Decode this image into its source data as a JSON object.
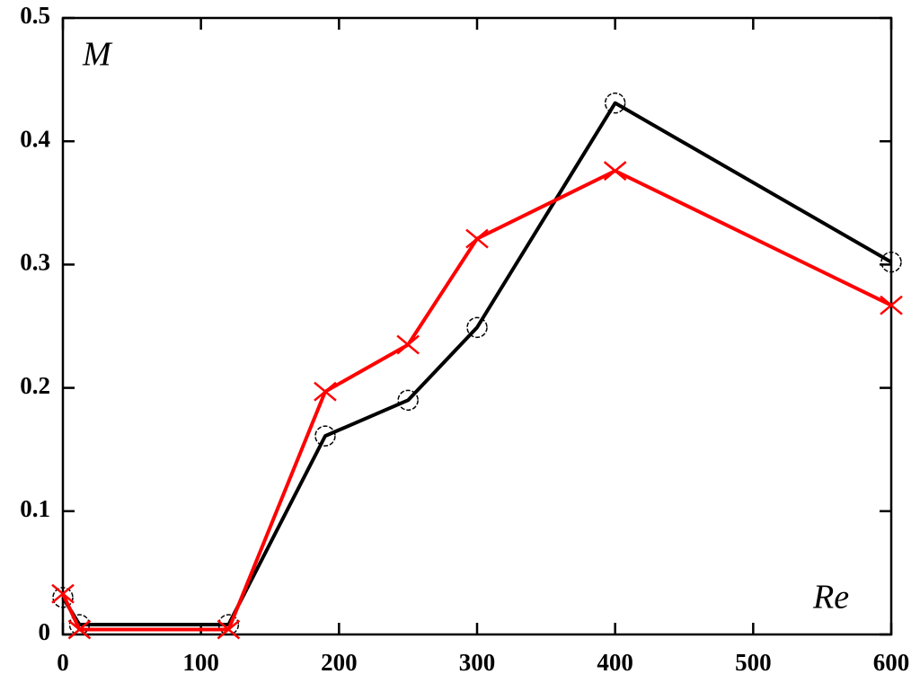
{
  "chart_data": {
    "type": "line",
    "xlabel": "Re",
    "ylabel": "M",
    "x": [
      0,
      12,
      120,
      190,
      250,
      300,
      400,
      600
    ],
    "series": [
      {
        "color": "#000000",
        "marker": "circle",
        "values": [
          0.03,
          0.008,
          0.008,
          0.161,
          0.19,
          0.249,
          0.431,
          0.302
        ]
      },
      {
        "color": "#ff0000",
        "marker": "cross",
        "values": [
          0.033,
          0.004,
          0.004,
          0.197,
          0.235,
          0.321,
          0.376,
          0.267
        ]
      }
    ],
    "xlim": [
      0,
      600
    ],
    "xticks": [
      0,
      100,
      200,
      300,
      400,
      500,
      600
    ],
    "ylim": [
      0,
      0.5
    ],
    "yticks": [
      0,
      0.1,
      0.2,
      0.3,
      0.4,
      0.5
    ],
    "grid": false
  }
}
